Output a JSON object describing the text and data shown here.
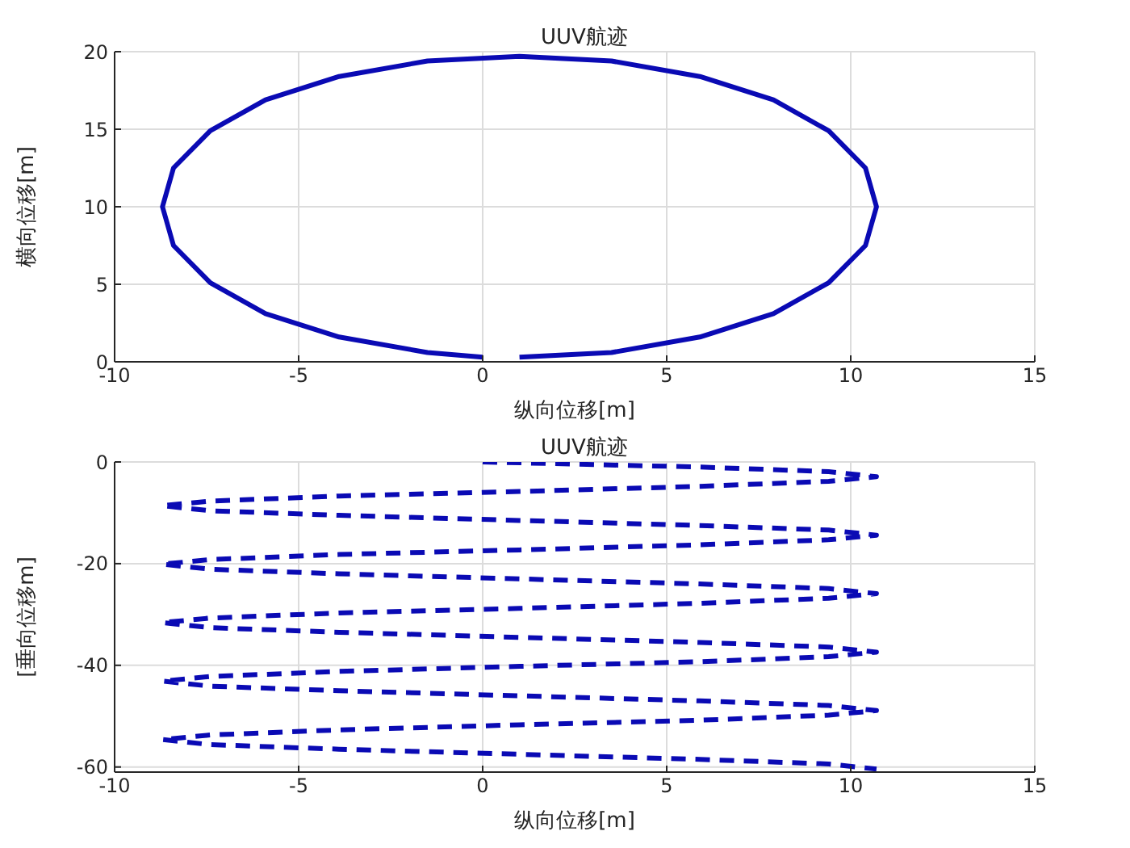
{
  "chart_data": [
    {
      "type": "line",
      "title": "UUV航迹",
      "xlabel": "纵向位移[m]",
      "ylabel": "横向位移[m]",
      "xlim": [
        -10,
        15
      ],
      "xticks": [
        -10,
        -5,
        0,
        5,
        10,
        15
      ],
      "ylim": [
        0,
        20
      ],
      "yticks": [
        0,
        5,
        10,
        15,
        20
      ],
      "grid": true,
      "line_style": "solid",
      "series": [
        {
          "color": "#0a0ab4",
          "x": [
            1,
            3.5,
            5.9,
            7.9,
            9.4,
            10.4,
            10.7,
            10.4,
            9.4,
            7.9,
            5.9,
            3.5,
            1,
            -1.5,
            -3.9,
            -5.9,
            -7.4,
            -8.4,
            -8.7,
            -8.4,
            -7.4,
            -5.9,
            -3.9,
            -1.5,
            0
          ],
          "values": [
            0.3,
            0.6,
            1.6,
            3.1,
            5.1,
            7.5,
            10,
            12.5,
            14.9,
            16.9,
            18.4,
            19.4,
            19.7,
            19.4,
            18.4,
            16.9,
            14.9,
            12.5,
            10,
            7.5,
            5.1,
            3.1,
            1.6,
            0.6,
            0.3
          ]
        }
      ]
    },
    {
      "type": "line",
      "title": "UUV航迹",
      "xlabel": "纵向位移[m]",
      "ylabel": "[垂向位移m]",
      "xlim": [
        -10,
        15
      ],
      "xticks": [
        -10,
        -5,
        0,
        5,
        10,
        15
      ],
      "ylim": [
        -61,
        0
      ],
      "yticks": [
        -60,
        -40,
        -20,
        0
      ],
      "grid": true,
      "line_style": "dashed",
      "series": [
        {
          "color": "#0a0ab4",
          "x": [
            0,
            5.9,
            9.4,
            10.7,
            9.4,
            5.9,
            1,
            -3.9,
            -7.4,
            -8.7,
            -7.4,
            -3.9,
            1,
            5.9,
            9.4,
            10.7,
            9.4,
            5.9,
            1,
            -3.9,
            -7.4,
            -8.7,
            -7.4,
            -3.9,
            1,
            5.9,
            9.4,
            10.7,
            9.4,
            5.9,
            1,
            -3.9,
            -7.4,
            -8.7,
            -7.4,
            -3.9,
            1,
            5.9,
            9.4,
            10.7,
            9.4,
            5.9,
            1,
            -3.9,
            -7.4,
            -8.7,
            -7.4,
            -3.9,
            1,
            5.9,
            9.4,
            10.7,
            9.4,
            5.9,
            1,
            -3.9,
            -7.4,
            -8.7,
            -7.4,
            -3.9,
            1,
            5.9,
            9.4,
            10.7
          ],
          "values": [
            0,
            -1.0,
            -1.9,
            -2.9,
            -3.8,
            -4.8,
            -5.8,
            -6.7,
            -7.7,
            -8.6,
            -9.6,
            -10.5,
            -11.5,
            -12.5,
            -13.4,
            -14.4,
            -15.3,
            -16.3,
            -17.3,
            -18.2,
            -19.2,
            -20.1,
            -21.1,
            -22.0,
            -23.0,
            -24.0,
            -24.9,
            -25.9,
            -26.8,
            -27.8,
            -28.8,
            -29.7,
            -30.7,
            -31.6,
            -32.6,
            -33.5,
            -34.5,
            -35.5,
            -36.4,
            -37.4,
            -38.3,
            -39.3,
            -40.2,
            -41.2,
            -42.2,
            -43.1,
            -44.1,
            -45.0,
            -46.0,
            -47.0,
            -47.9,
            -48.9,
            -49.8,
            -50.8,
            -51.7,
            -52.7,
            -53.7,
            -54.6,
            -55.6,
            -56.5,
            -57.5,
            -58.5,
            -59.4,
            -60.4
          ]
        }
      ]
    }
  ]
}
